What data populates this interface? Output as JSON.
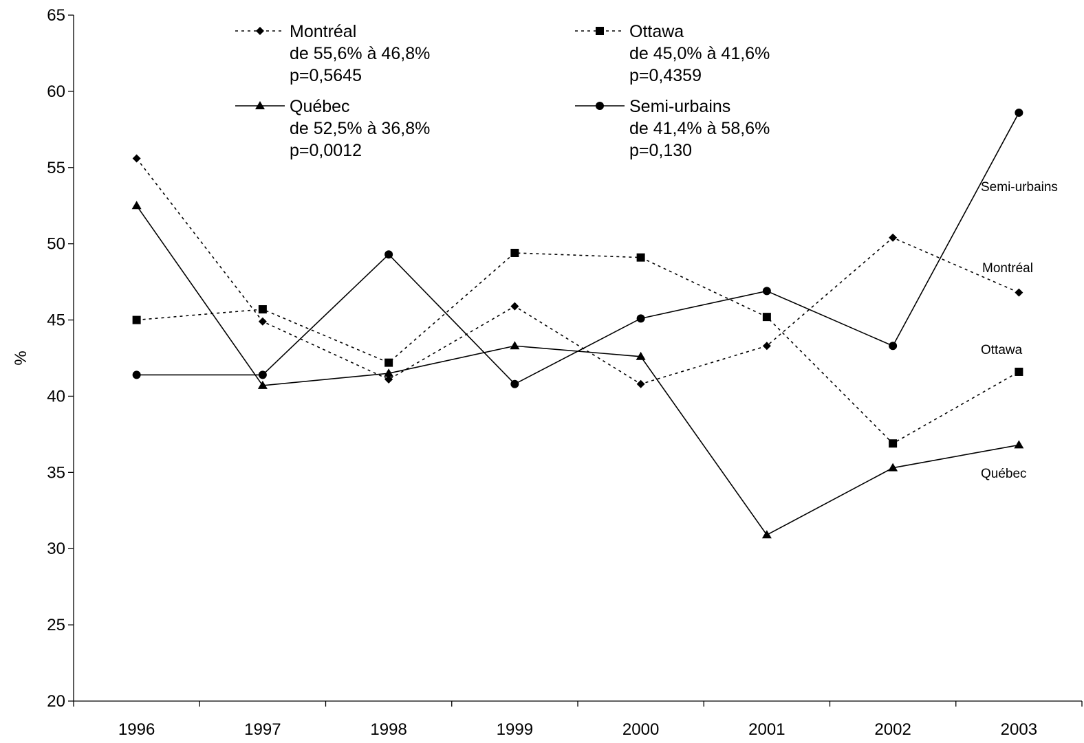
{
  "chart_data": {
    "type": "line",
    "title": "",
    "xlabel": "",
    "ylabel": "%",
    "ylim": [
      20,
      65
    ],
    "yticks": [
      20,
      25,
      30,
      35,
      40,
      45,
      50,
      55,
      60,
      65
    ],
    "categories": [
      "1996",
      "1997",
      "1998",
      "1999",
      "2000",
      "2001",
      "2002",
      "2003"
    ],
    "grid": false,
    "legend_position": "top",
    "series": [
      {
        "name": "Montréal",
        "line_style": "dotted",
        "marker": "diamond",
        "values": [
          55.6,
          44.9,
          41.1,
          45.9,
          40.8,
          43.3,
          50.4,
          46.8
        ],
        "legend_lines": [
          "de 55,6% à 46,8%",
          "p=0,5645"
        ],
        "end_label": "Montréal"
      },
      {
        "name": "Ottawa",
        "line_style": "dotted",
        "marker": "square",
        "values": [
          45.0,
          45.7,
          42.2,
          49.4,
          49.1,
          45.2,
          36.9,
          41.6
        ],
        "legend_lines": [
          "de 45,0% à 41,6%",
          "p=0,4359"
        ],
        "end_label": "Ottawa"
      },
      {
        "name": "Québec",
        "line_style": "solid",
        "marker": "triangle",
        "values": [
          52.5,
          40.7,
          41.5,
          43.3,
          42.6,
          30.9,
          35.3,
          36.8
        ],
        "legend_lines": [
          "de 52,5% à 36,8%",
          "p=0,0012"
        ],
        "end_label": "Québec"
      },
      {
        "name": "Semi-urbains",
        "line_style": "solid",
        "marker": "circle",
        "values": [
          41.4,
          41.4,
          49.3,
          40.8,
          45.1,
          46.9,
          43.3,
          58.6
        ],
        "legend_lines": [
          "de 41,4% à 58,6%",
          "p=0,130"
        ],
        "end_label": "Semi-urbains"
      }
    ]
  }
}
